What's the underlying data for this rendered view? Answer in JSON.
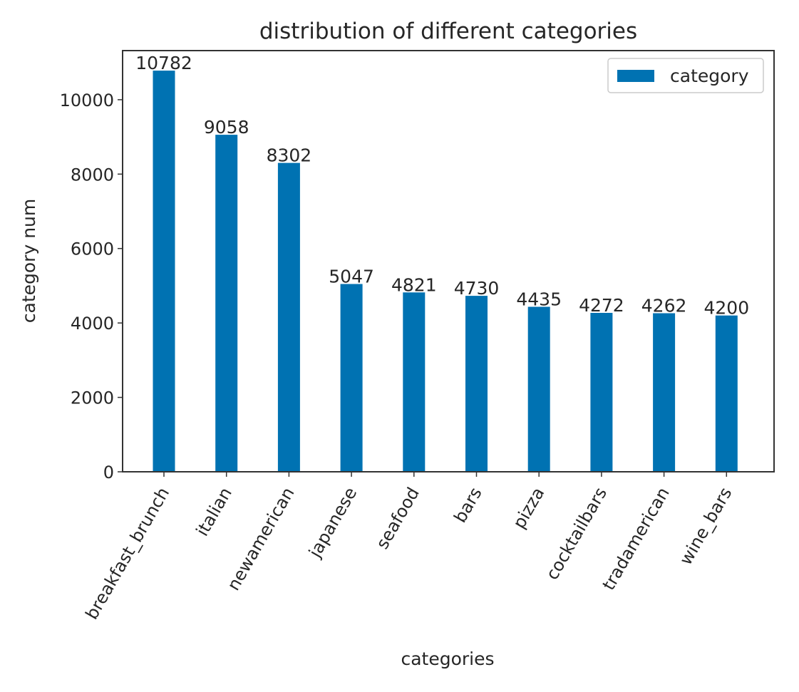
{
  "chart_data": {
    "type": "bar",
    "title": "distribution of different categories",
    "xlabel": "categories",
    "ylabel": "category num",
    "categories": [
      "breakfast_brunch",
      "italian",
      "newamerican",
      "japanese",
      "seafood",
      "bars",
      "pizza",
      "cocktailbars",
      "tradamerican",
      "wine_bars"
    ],
    "series": [
      {
        "name": "category",
        "values": [
          10782,
          9058,
          8302,
          5047,
          4821,
          4730,
          4435,
          4272,
          4262,
          4200
        ]
      }
    ],
    "data_labels": [
      "10782",
      "9058",
      "8302",
      "5047",
      "4821",
      "4730",
      "4435",
      "4272",
      "4262",
      "4200"
    ],
    "ylim": [
      0,
      11320
    ],
    "yticks": [
      0,
      2000,
      4000,
      6000,
      8000,
      10000
    ],
    "ytick_labels": [
      "0",
      "2000",
      "4000",
      "6000",
      "8000",
      "10000"
    ],
    "grid": false,
    "legend_position": "top-right",
    "bar_color": "#0072b2"
  }
}
